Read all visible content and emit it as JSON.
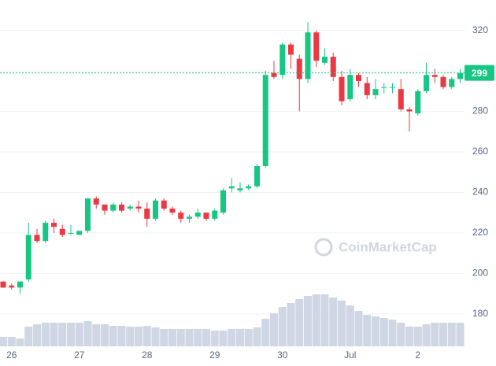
{
  "chart_data": {
    "type": "candlestick",
    "watermark": "CoinMarketCap",
    "categories": [
      null,
      "26",
      null,
      null,
      null,
      null,
      null,
      null,
      null,
      "27",
      null,
      null,
      null,
      null,
      null,
      null,
      null,
      "28",
      null,
      null,
      null,
      null,
      null,
      null,
      null,
      "29",
      null,
      null,
      null,
      null,
      null,
      null,
      null,
      "30",
      null,
      null,
      null,
      null,
      null,
      null,
      null,
      "Jul",
      null,
      null,
      null,
      null,
      null,
      null,
      null,
      "2",
      null,
      null,
      null,
      null,
      null
    ],
    "open": [
      196,
      194,
      193,
      197,
      219,
      216,
      225,
      222,
      220,
      219,
      221,
      237,
      234,
      231,
      234,
      232,
      233,
      232,
      227,
      236,
      232,
      230,
      227,
      228,
      230,
      227,
      230,
      242,
      241,
      242,
      243,
      253,
      299,
      298,
      313,
      306,
      296,
      319,
      304,
      307,
      297,
      286,
      298,
      294,
      288,
      292,
      292,
      291,
      281,
      279,
      290,
      298,
      297,
      292,
      296
    ],
    "high": [
      196,
      195,
      196,
      225,
      222,
      226,
      227,
      224,
      224,
      221,
      237,
      238,
      234,
      235,
      235,
      234,
      236,
      235,
      237,
      237,
      233,
      231,
      229,
      232,
      230,
      232,
      242,
      247,
      245,
      244,
      254,
      300,
      305,
      314,
      314,
      308,
      324,
      320,
      311,
      309,
      300,
      301,
      299,
      297,
      296,
      294,
      294,
      296,
      282,
      291,
      304,
      301,
      298,
      297,
      301
    ],
    "low": [
      193,
      192,
      190,
      196,
      215,
      215,
      220,
      218,
      219,
      219,
      220,
      232,
      229,
      230,
      230,
      231,
      230,
      223,
      226,
      231,
      229,
      225,
      225,
      227,
      226,
      226,
      229,
      240,
      240,
      241,
      242,
      252,
      296,
      296,
      301,
      280,
      294,
      302,
      303,
      295,
      283,
      285,
      292,
      286,
      286,
      289,
      289,
      280,
      270,
      278,
      289,
      294,
      291,
      291,
      294
    ],
    "close": [
      193,
      193,
      196,
      219,
      216,
      225,
      223,
      219,
      220,
      221,
      237,
      234,
      231,
      234,
      231,
      233,
      232,
      227,
      236,
      232,
      230,
      227,
      228,
      230,
      227,
      231,
      241,
      243,
      242,
      243,
      253,
      298,
      297,
      313,
      308,
      296,
      319,
      305,
      307,
      297,
      285,
      298,
      295,
      288,
      291,
      292,
      292,
      281,
      280,
      290,
      298,
      297,
      292,
      296,
      299
    ],
    "volume": [
      12,
      12,
      10,
      25,
      28,
      30,
      30,
      30,
      30,
      30,
      32,
      28,
      28,
      26,
      26,
      25,
      25,
      26,
      24,
      22,
      22,
      22,
      22,
      22,
      22,
      20,
      20,
      22,
      22,
      22,
      24,
      35,
      42,
      50,
      55,
      60,
      64,
      66,
      66,
      62,
      58,
      52,
      45,
      40,
      38,
      36,
      34,
      30,
      25,
      25,
      28,
      30,
      30,
      30,
      30
    ],
    "vlim": [
      0,
      100
    ],
    "up_color": "#16c784",
    "down_color": "#ea3943",
    "volume_color": "#cfd6e4",
    "ylim": [
      164,
      335
    ],
    "yticks": [
      180,
      200,
      220,
      240,
      260,
      280,
      300,
      320
    ],
    "last_price": 299,
    "grid": true
  }
}
